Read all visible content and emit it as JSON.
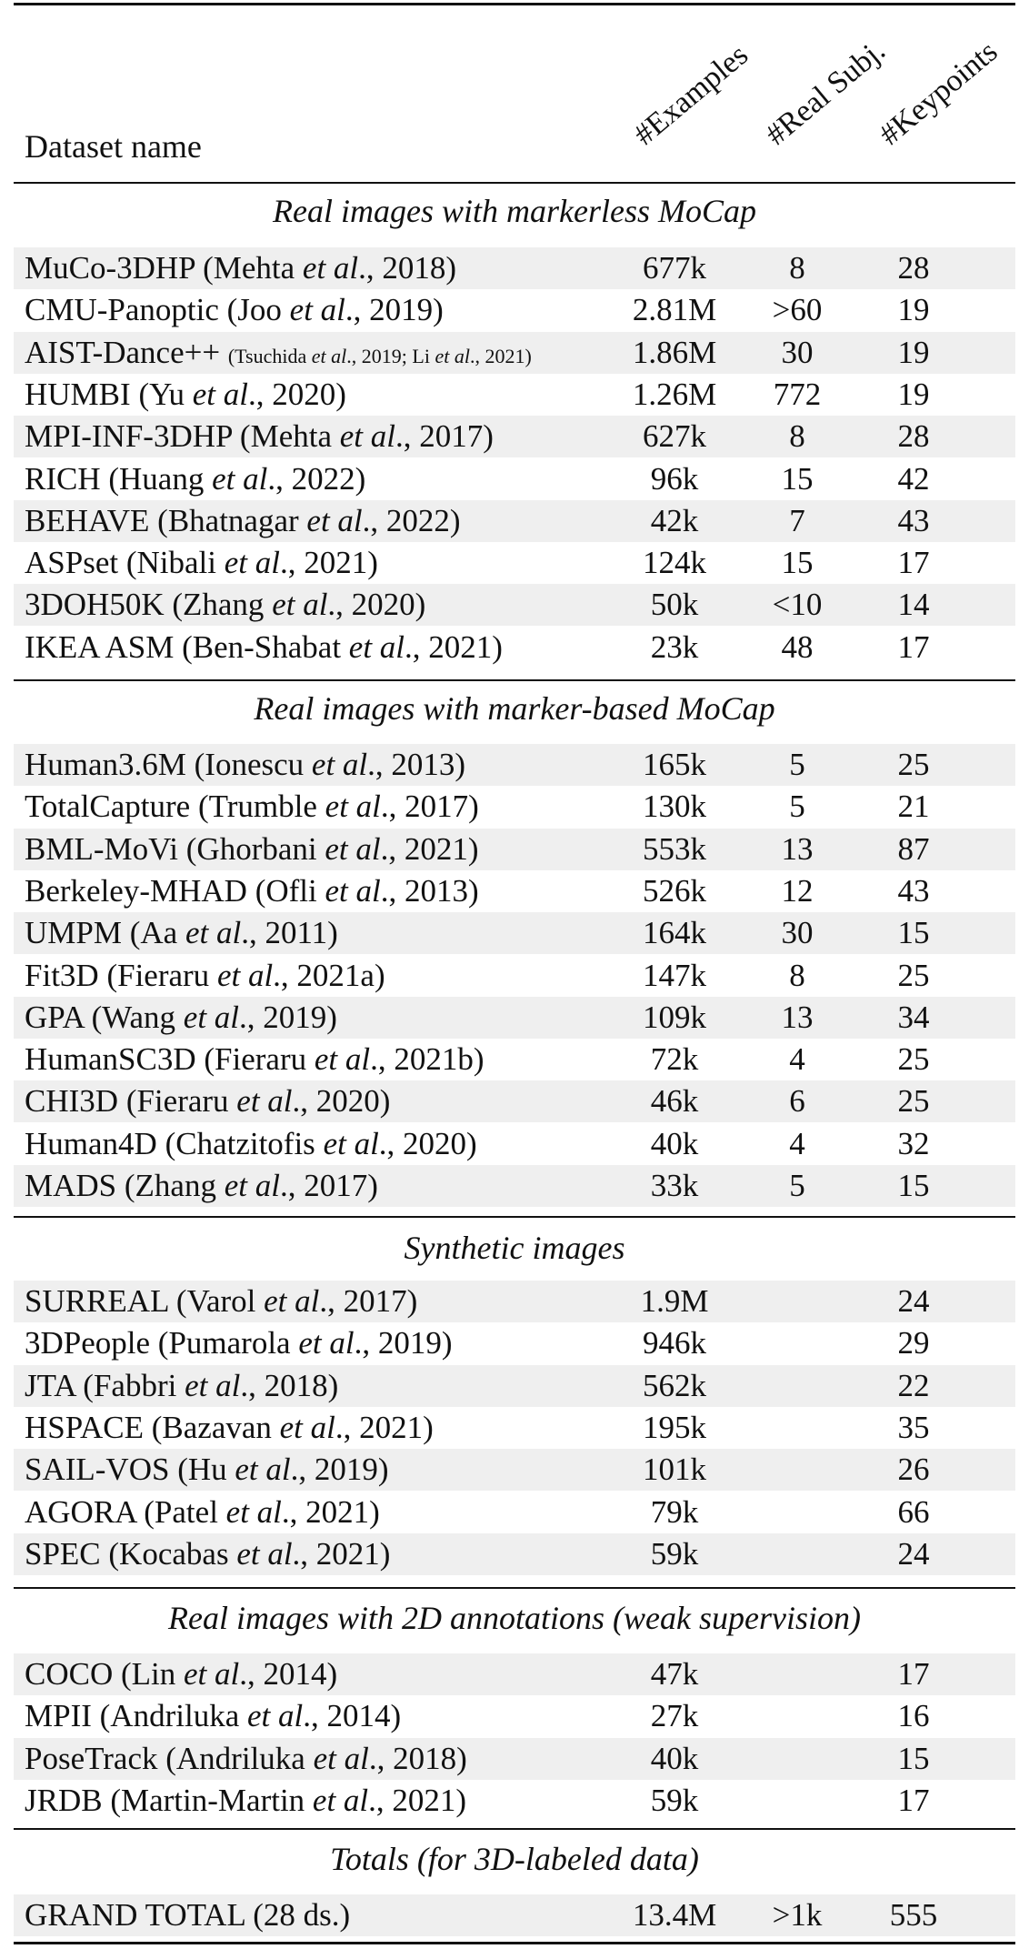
{
  "header": {
    "name": "Dataset name",
    "examples": "#Examples",
    "real_subj": "#Real Subj.",
    "keypoints": "#Keypoints"
  },
  "sections": [
    {
      "title": "Real images with markerless MoCap",
      "rows": [
        {
          "name": "MuCo-3DHP",
          "cite_pre": "(Mehta ",
          "cite_post": "., 2018)",
          "examples": "677k",
          "subj": "8",
          "kp": "28"
        },
        {
          "name": "CMU-Panoptic",
          "cite_pre": "(Joo ",
          "cite_post": "., 2019)",
          "examples": "2.81M",
          "subj": ">60",
          "kp": "19"
        },
        {
          "name": "AIST-Dance++",
          "cite_small": "(Tsuchida et al., 2019; Li et al., 2021)",
          "examples": "1.86M",
          "subj": "30",
          "kp": "19"
        },
        {
          "name": "HUMBI",
          "cite_pre": "(Yu ",
          "cite_post": "., 2020)",
          "examples": "1.26M",
          "subj": "772",
          "kp": "19"
        },
        {
          "name": "MPI-INF-3DHP",
          "cite_pre": "(Mehta ",
          "cite_post": "., 2017)",
          "examples": "627k",
          "subj": "8",
          "kp": "28"
        },
        {
          "name": "RICH",
          "cite_pre": "(Huang ",
          "cite_post": "., 2022)",
          "examples": "96k",
          "subj": "15",
          "kp": "42"
        },
        {
          "name": "BEHAVE",
          "cite_pre": "(Bhatnagar ",
          "cite_post": "., 2022)",
          "examples": "42k",
          "subj": "7",
          "kp": "43"
        },
        {
          "name": "ASPset",
          "cite_pre": "(Nibali ",
          "cite_post": "., 2021)",
          "examples": "124k",
          "subj": "15",
          "kp": "17"
        },
        {
          "name": "3DOH50K",
          "cite_pre": "(Zhang ",
          "cite_post": "., 2020)",
          "examples": "50k",
          "subj": "<10",
          "kp": "14"
        },
        {
          "name": "IKEA ASM",
          "cite_pre": "(Ben-Shabat ",
          "cite_post": "., 2021)",
          "examples": "23k",
          "subj": "48",
          "kp": "17"
        }
      ]
    },
    {
      "title": "Real images with marker-based MoCap",
      "rows": [
        {
          "name": "Human3.6M",
          "cite_pre": "(Ionescu ",
          "cite_post": "., 2013)",
          "examples": "165k",
          "subj": "5",
          "kp": "25"
        },
        {
          "name": "TotalCapture",
          "cite_pre": "(Trumble ",
          "cite_post": "., 2017)",
          "examples": "130k",
          "subj": "5",
          "kp": "21"
        },
        {
          "name": "BML-MoVi",
          "cite_pre": "(Ghorbani ",
          "cite_post": "., 2021)",
          "examples": "553k",
          "subj": "13",
          "kp": "87"
        },
        {
          "name": "Berkeley-MHAD",
          "cite_pre": "(Ofli ",
          "cite_post": "., 2013)",
          "examples": "526k",
          "subj": "12",
          "kp": "43"
        },
        {
          "name": "UMPM",
          "cite_pre": "(Aa ",
          "cite_post": "., 2011)",
          "examples": "164k",
          "subj": "30",
          "kp": "15"
        },
        {
          "name": "Fit3D",
          "cite_pre": "(Fieraru ",
          "cite_post": "., 2021a)",
          "examples": "147k",
          "subj": "8",
          "kp": "25"
        },
        {
          "name": "GPA",
          "cite_pre": "(Wang ",
          "cite_post": "., 2019)",
          "examples": "109k",
          "subj": "13",
          "kp": "34"
        },
        {
          "name": "HumanSC3D",
          "cite_pre": "(Fieraru ",
          "cite_post": "., 2021b)",
          "examples": "72k",
          "subj": "4",
          "kp": "25"
        },
        {
          "name": "CHI3D",
          "cite_pre": "(Fieraru ",
          "cite_post": "., 2020)",
          "examples": "46k",
          "subj": "6",
          "kp": "25"
        },
        {
          "name": "Human4D",
          "cite_pre": "(Chatzitofis ",
          "cite_post": "., 2020)",
          "examples": "40k",
          "subj": "4",
          "kp": "32"
        },
        {
          "name": "MADS",
          "cite_pre": "(Zhang ",
          "cite_post": "., 2017)",
          "examples": "33k",
          "subj": "5",
          "kp": "15"
        }
      ]
    },
    {
      "title": "Synthetic images",
      "rows": [
        {
          "name": "SURREAL",
          "cite_pre": "(Varol ",
          "cite_post": "., 2017)",
          "examples": "1.9M",
          "subj": "",
          "kp": "24"
        },
        {
          "name": "3DPeople",
          "cite_pre": "(Pumarola ",
          "cite_post": "., 2019)",
          "examples": "946k",
          "subj": "",
          "kp": "29"
        },
        {
          "name": "JTA",
          "cite_pre": "(Fabbri ",
          "cite_post": "., 2018)",
          "examples": "562k",
          "subj": "",
          "kp": "22"
        },
        {
          "name": "HSPACE",
          "cite_pre": "(Bazavan ",
          "cite_post": "., 2021)",
          "examples": "195k",
          "subj": "",
          "kp": "35"
        },
        {
          "name": "SAIL-VOS",
          "cite_pre": "(Hu ",
          "cite_post": "., 2019)",
          "examples": "101k",
          "subj": "",
          "kp": "26"
        },
        {
          "name": "AGORA",
          "cite_pre": "(Patel ",
          "cite_post": "., 2021)",
          "examples": "79k",
          "subj": "",
          "kp": "66"
        },
        {
          "name": "SPEC",
          "cite_pre": "(Kocabas ",
          "cite_post": "., 2021)",
          "examples": "59k",
          "subj": "",
          "kp": "24"
        }
      ]
    },
    {
      "title": "Real images with 2D annotations (weak supervision)",
      "rows": [
        {
          "name": "COCO",
          "cite_pre": "(Lin ",
          "cite_post": "., 2014)",
          "examples": "47k",
          "subj": "",
          "kp": "17"
        },
        {
          "name": "MPII",
          "cite_pre": "(Andriluka ",
          "cite_post": "., 2014)",
          "examples": "27k",
          "subj": "",
          "kp": "16"
        },
        {
          "name": "PoseTrack",
          "cite_pre": "(Andriluka ",
          "cite_post": "., 2018)",
          "examples": "40k",
          "subj": "",
          "kp": "15"
        },
        {
          "name": "JRDB",
          "cite_pre": "(Martin-Martin ",
          "cite_post": "., 2021)",
          "examples": "59k",
          "subj": "",
          "kp": "17"
        }
      ]
    },
    {
      "title": "Totals (for 3D-labeled data)",
      "rows": [
        {
          "name": "GRAND TOTAL (28 ds.)",
          "examples": "13.4M",
          "subj": ">1k",
          "kp": "555"
        }
      ]
    }
  ],
  "et_al": "et al"
}
